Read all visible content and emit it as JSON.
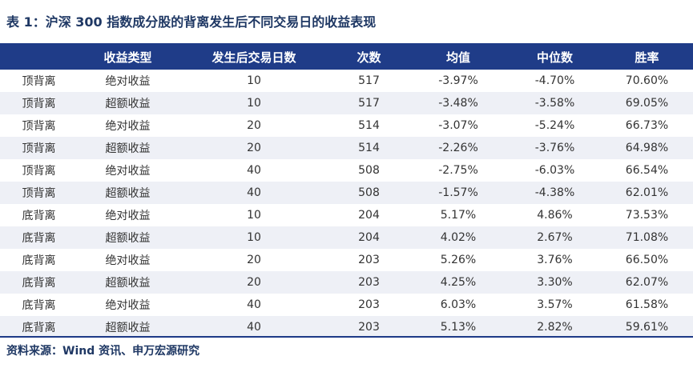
{
  "title": "表 1：沪深 300 指数成分股的背离发生后不同交易日的收益表现",
  "table": {
    "headers": [
      "",
      "收益类型",
      "发生后交易日数",
      "次数",
      "均值",
      "中位数",
      "胜率"
    ],
    "rows": [
      [
        "顶背离",
        "绝对收益",
        "10",
        "517",
        "-3.97%",
        "-4.70%",
        "70.60%"
      ],
      [
        "顶背离",
        "超额收益",
        "10",
        "517",
        "-3.48%",
        "-3.58%",
        "69.05%"
      ],
      [
        "顶背离",
        "绝对收益",
        "20",
        "514",
        "-3.07%",
        "-5.24%",
        "66.73%"
      ],
      [
        "顶背离",
        "超额收益",
        "20",
        "514",
        "-2.26%",
        "-3.76%",
        "64.98%"
      ],
      [
        "顶背离",
        "绝对收益",
        "40",
        "508",
        "-2.75%",
        "-6.03%",
        "66.54%"
      ],
      [
        "顶背离",
        "超额收益",
        "40",
        "508",
        "-1.57%",
        "-4.38%",
        "62.01%"
      ],
      [
        "底背离",
        "绝对收益",
        "10",
        "204",
        "5.17%",
        "4.86%",
        "73.53%"
      ],
      [
        "底背离",
        "超额收益",
        "10",
        "204",
        "4.02%",
        "2.67%",
        "71.08%"
      ],
      [
        "底背离",
        "绝对收益",
        "20",
        "203",
        "5.26%",
        "3.76%",
        "66.50%"
      ],
      [
        "底背离",
        "超额收益",
        "20",
        "203",
        "4.25%",
        "3.30%",
        "62.07%"
      ],
      [
        "底背离",
        "绝对收益",
        "40",
        "203",
        "6.03%",
        "3.57%",
        "61.58%"
      ],
      [
        "底背离",
        "超额收益",
        "40",
        "203",
        "5.13%",
        "2.82%",
        "59.61%"
      ]
    ]
  },
  "source": "资料来源：Wind 资讯、申万宏源研究",
  "colors": {
    "header_bg": "#1f3c88",
    "header_text": "#ffffff",
    "alt_row_bg": "#eef0f6",
    "title_text": "#1f3864"
  }
}
